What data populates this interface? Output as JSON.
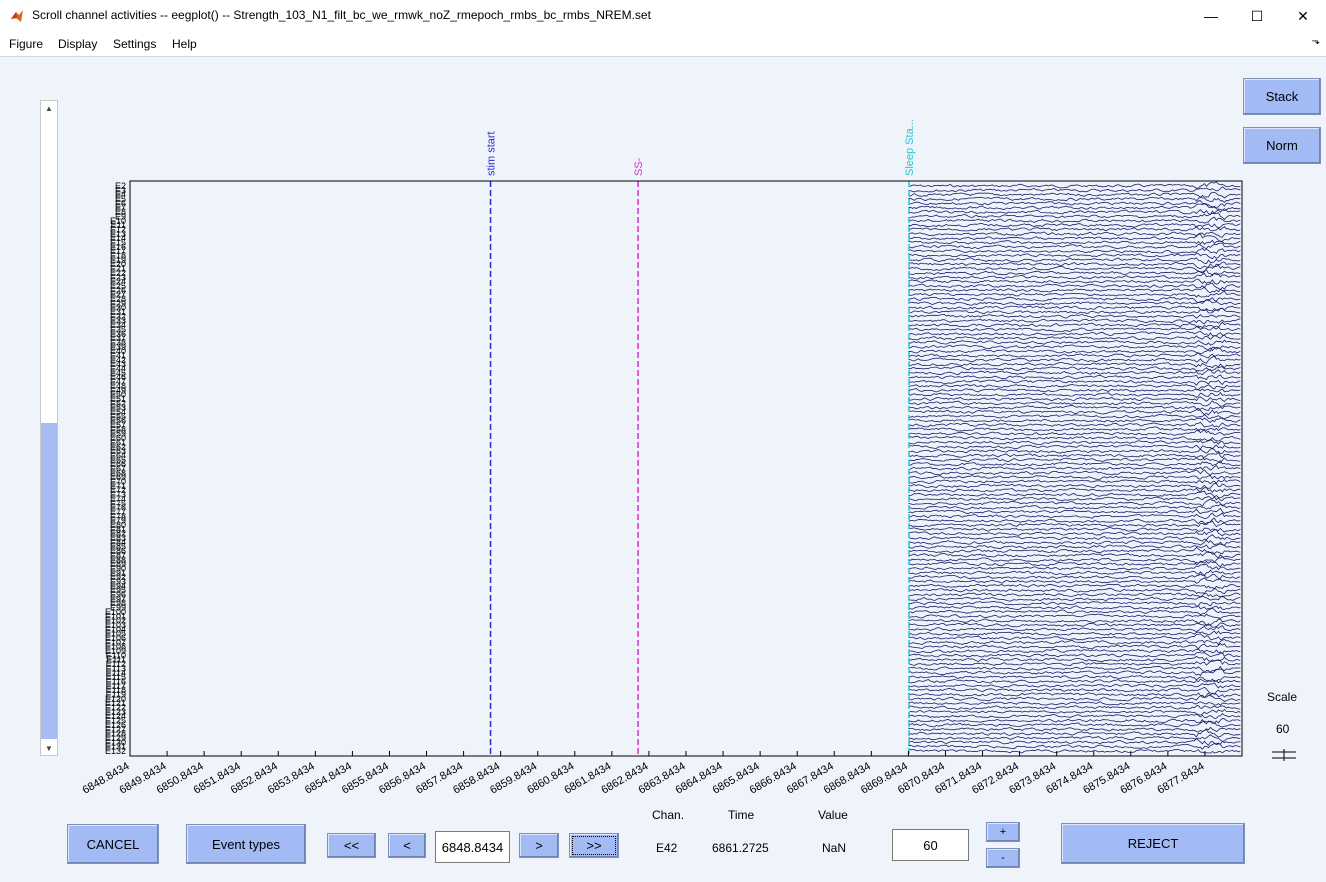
{
  "window": {
    "title": "Scroll channel activities -- eegplot() -- Strength_103_N1_filt_bc_we_rmwk_noZ_rmepoch_rmbs_bc_rmbs_NREM.set",
    "minimize": "—",
    "maximize": "☐",
    "close": "✕",
    "icon": "matlab-icon"
  },
  "menu": {
    "figure": "Figure",
    "display": "Display",
    "settings": "Settings",
    "help": "Help",
    "dock": "⬎"
  },
  "buttons": {
    "stack": "Stack",
    "norm": "Norm",
    "cancel": "CANCEL",
    "event_types": "Event types",
    "first": "<<",
    "prev": "<",
    "next": ">",
    "last": ">>",
    "plus": "+",
    "minus": "-",
    "reject": "REJECT"
  },
  "time_field": "6848.8434",
  "scale_field": "60",
  "readout": {
    "chan_label": "Chan.",
    "time_label": "Time",
    "value_label": "Value",
    "chan_value": "E42",
    "time_value": "6861.2725",
    "value_value": "NaN"
  },
  "scale": {
    "label": "Scale",
    "value": "60"
  },
  "colors": {
    "trace": "#1a1a66",
    "stim": "#2a2ad0",
    "ss": "#d030d0",
    "sleep": "#20c8d8",
    "button": "#a3bbf5"
  },
  "chart_data": {
    "type": "line",
    "x_range": [
      6848.8434,
      6878.8434
    ],
    "xticks": [
      "6848.8434",
      "6849.8434",
      "6850.8434",
      "6851.8434",
      "6852.8434",
      "6853.8434",
      "6854.8434",
      "6855.8434",
      "6856.8434",
      "6857.8434",
      "6858.8434",
      "6859.8434",
      "6860.8434",
      "6861.8434",
      "6862.8434",
      "6863.8434",
      "6864.8434",
      "6865.8434",
      "6866.8434",
      "6867.8434",
      "6868.8434",
      "6869.8434",
      "6870.8434",
      "6871.8434",
      "6872.8434",
      "6873.8434",
      "6874.8434",
      "6875.8434",
      "6876.8434",
      "6877.8434"
    ],
    "channels": [
      "E2",
      "E3",
      "E4",
      "E5",
      "E6",
      "E7",
      "E8",
      "E9",
      "E10",
      "E11",
      "E12",
      "E13",
      "E14",
      "E15",
      "E16",
      "E17",
      "E18",
      "E19",
      "E20",
      "E21",
      "E22",
      "E23",
      "E24",
      "E25",
      "E26",
      "E27",
      "E28",
      "E29",
      "E30",
      "E31",
      "E32",
      "E33",
      "E34",
      "E35",
      "E36",
      "E37",
      "E38",
      "E39",
      "E40",
      "E41",
      "E42",
      "E43",
      "E44",
      "E45",
      "E46",
      "E47",
      "E48",
      "E49",
      "E50",
      "E51",
      "E52",
      "E53",
      "E54",
      "E55",
      "E56",
      "E57",
      "E58",
      "E59",
      "E60",
      "E61",
      "E62",
      "E63",
      "E64",
      "E65",
      "E66",
      "E67",
      "E68",
      "E69",
      "E70",
      "E71",
      "E72",
      "E73",
      "E74",
      "E75",
      "E76",
      "E77",
      "E78",
      "E79",
      "E80",
      "E81",
      "E82",
      "E83",
      "E84",
      "E85",
      "E86",
      "E87",
      "E88",
      "E89",
      "E90",
      "E91",
      "E92",
      "E93",
      "E94",
      "E95",
      "E96",
      "E97",
      "E98",
      "E99",
      "E100",
      "E101",
      "E102",
      "E103",
      "E104",
      "E105",
      "E106",
      "E107",
      "E108",
      "E109",
      "E110",
      "E111",
      "E112",
      "E113",
      "E114",
      "E115",
      "E116",
      "E117",
      "E118",
      "E119",
      "E120",
      "E121",
      "E122",
      "E123",
      "E124",
      "E125",
      "E126",
      "E127",
      "E128",
      "E129",
      "E130",
      "E131",
      "E132"
    ],
    "data_start": 6869.8434,
    "events": [
      {
        "label": "stim start",
        "time": 6858.57,
        "color": "#2a2ad0"
      },
      {
        "label": "SS-",
        "time": 6862.55,
        "color": "#d030d0"
      },
      {
        "label": "Sleep Sta...",
        "time": 6869.86,
        "color": "#20c8d8"
      }
    ]
  }
}
